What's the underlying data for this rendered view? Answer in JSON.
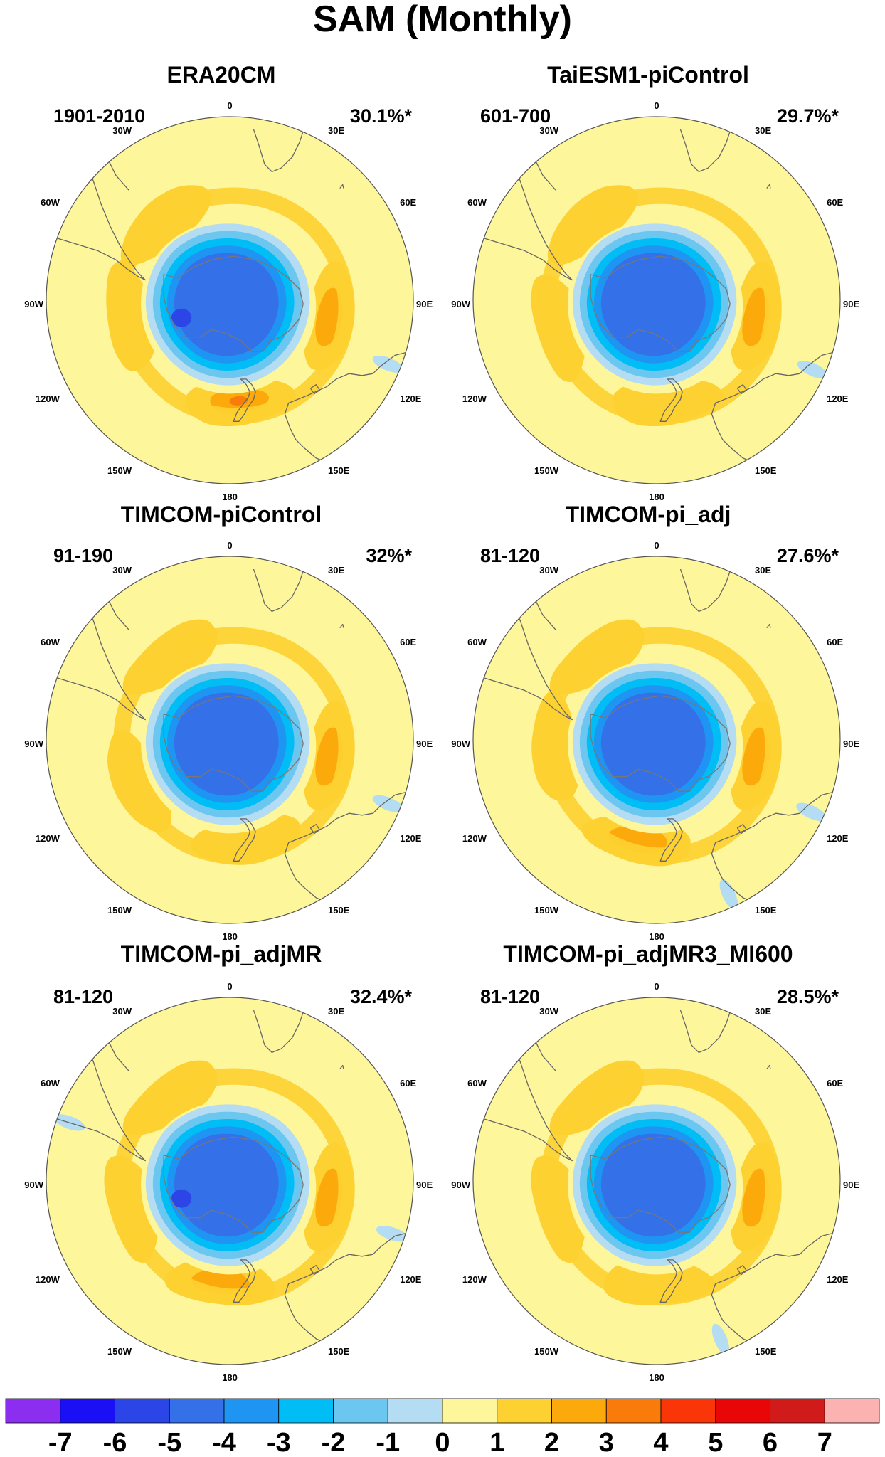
{
  "figure": {
    "title": "SAM (Monthly)"
  },
  "colors": {
    "levels": [
      "#8b2ef0",
      "#1b10f5",
      "#2b45e6",
      "#3470e8",
      "#1e95f3",
      "#00bdf5",
      "#6bc6f0",
      "#b4dcf2",
      "#fdf69b",
      "#fdd131",
      "#fba90b",
      "#f97b0a",
      "#fa3508",
      "#e80606",
      "#d11a1a",
      "#fdb2b2"
    ],
    "coast": "#666666",
    "land_outline": "#777777"
  },
  "chart_data": [
    {
      "type": "heatmap",
      "projection": "south-polar-stereographic",
      "title": "ERA20CM",
      "period": "1901-2010",
      "variance": "30.1%*",
      "lon_labels": [
        "0",
        "30E",
        "60E",
        "90E",
        "120E",
        "150E",
        "180",
        "150W",
        "120W",
        "90W",
        "60W",
        "30W"
      ],
      "features": {
        "ring": [
          -1.2,
          -1.4,
          -1.3,
          -1.1,
          -1.2,
          -1.3,
          -1.2,
          -1.2,
          -1.3,
          -1.2,
          -1.1,
          -1.2
        ],
        "core_min": -5.7,
        "positive_lobes": [
          {
            "lon": 100,
            "value": 2.6
          },
          {
            "lon": 175,
            "value": 3.4
          },
          {
            "lon": 260,
            "value": 1.6
          },
          {
            "lon": 320,
            "value": 1.5
          }
        ],
        "negative_patches": [
          {
            "lon": 112,
            "value": -0.8
          }
        ]
      }
    },
    {
      "type": "heatmap",
      "projection": "south-polar-stereographic",
      "title": "TaiESM1-piControl",
      "period": "601-700",
      "variance": "29.7%*",
      "lon_labels": [
        "0",
        "30E",
        "60E",
        "90E",
        "120E",
        "150E",
        "180",
        "150W",
        "120W",
        "90W",
        "60W",
        "30W"
      ],
      "features": {
        "ring": [
          -1.2,
          -1.3,
          -1.2,
          -1.1,
          -1.2,
          -1.2,
          -1.2,
          -1.2,
          -1.3,
          -1.2,
          -1.1,
          -1.2
        ],
        "core_min": -4.8,
        "positive_lobes": [
          {
            "lon": 100,
            "value": 2.5
          },
          {
            "lon": 175,
            "value": 1.9
          },
          {
            "lon": 255,
            "value": 1.6
          },
          {
            "lon": 320,
            "value": 1.6
          }
        ],
        "negative_patches": [
          {
            "lon": 114,
            "value": -0.9
          }
        ]
      }
    },
    {
      "type": "heatmap",
      "projection": "south-polar-stereographic",
      "title": "TIMCOM-piControl",
      "period": "91-190",
      "variance": "32%*",
      "lon_labels": [
        "0",
        "30E",
        "60E",
        "90E",
        "120E",
        "150E",
        "180",
        "150W",
        "120W",
        "90W",
        "60W",
        "30W"
      ],
      "features": {
        "ring": [
          -1.2,
          -1.3,
          -1.2,
          -1.1,
          -1.2,
          -1.2,
          -1.2,
          -1.2,
          -1.3,
          -1.2,
          -1.1,
          -1.2
        ],
        "core_min": -4.9,
        "positive_lobes": [
          {
            "lon": 100,
            "value": 2.6
          },
          {
            "lon": 170,
            "value": 1.9
          },
          {
            "lon": 245,
            "value": 1.8
          },
          {
            "lon": 325,
            "value": 1.5
          }
        ],
        "negative_patches": [
          {
            "lon": 112,
            "value": -0.6
          }
        ]
      }
    },
    {
      "type": "heatmap",
      "projection": "south-polar-stereographic",
      "title": "TIMCOM-pi_adj",
      "period": "81-120",
      "variance": "27.6%*",
      "lon_labels": [
        "0",
        "30E",
        "60E",
        "90E",
        "120E",
        "150E",
        "180",
        "150W",
        "120W",
        "90W",
        "60W",
        "30W"
      ],
      "features": {
        "ring": [
          -1.2,
          -1.3,
          -1.2,
          -1.1,
          -1.2,
          -1.2,
          -1.2,
          -1.2,
          -1.3,
          -1.2,
          -1.1,
          -1.2
        ],
        "core_min": -4.9,
        "positive_lobes": [
          {
            "lon": 100,
            "value": 2.4
          },
          {
            "lon": 190,
            "value": 2.6
          },
          {
            "lon": 265,
            "value": 1.5
          },
          {
            "lon": 325,
            "value": 1.4
          }
        ],
        "negative_patches": [
          {
            "lon": 115,
            "value": -0.9
          },
          {
            "lon": 155,
            "value": -0.7
          }
        ]
      }
    },
    {
      "type": "heatmap",
      "projection": "south-polar-stereographic",
      "title": "TIMCOM-pi_adjMR",
      "period": "81-120",
      "variance": "32.4%*",
      "lon_labels": [
        "0",
        "30E",
        "60E",
        "90E",
        "120E",
        "150E",
        "180",
        "150W",
        "120W",
        "90W",
        "60W",
        "30W"
      ],
      "features": {
        "ring": [
          -1.2,
          -1.3,
          -1.2,
          -1.1,
          -1.2,
          -1.2,
          -1.2,
          -1.2,
          -1.3,
          -1.2,
          -1.1,
          -1.2
        ],
        "core_min": -5.6,
        "positive_lobes": [
          {
            "lon": 100,
            "value": 2.7
          },
          {
            "lon": 185,
            "value": 2.0
          },
          {
            "lon": 255,
            "value": 1.8
          },
          {
            "lon": 325,
            "value": 1.6
          }
        ],
        "negative_patches": [
          {
            "lon": 108,
            "value": -0.8
          },
          {
            "lon": 290,
            "value": -0.6
          }
        ]
      }
    },
    {
      "type": "heatmap",
      "projection": "south-polar-stereographic",
      "title": "TIMCOM-pi_adjMR3_MI600",
      "period": "81-120",
      "variance": "28.5%*",
      "lon_labels": [
        "0",
        "30E",
        "60E",
        "90E",
        "120E",
        "150E",
        "180",
        "150W",
        "120W",
        "90W",
        "60W",
        "30W"
      ],
      "features": {
        "ring": [
          -1.2,
          -1.3,
          -1.2,
          -1.1,
          -1.2,
          -1.2,
          -1.2,
          -1.2,
          -1.3,
          -1.2,
          -1.1,
          -1.2
        ],
        "core_min": -4.8,
        "positive_lobes": [
          {
            "lon": 100,
            "value": 2.5
          },
          {
            "lon": 180,
            "value": 1.8
          },
          {
            "lon": 255,
            "value": 1.7
          },
          {
            "lon": 325,
            "value": 1.5
          }
        ],
        "negative_patches": [
          {
            "lon": 158,
            "value": -0.7
          }
        ]
      }
    }
  ],
  "colorbar": {
    "labels": [
      "-7",
      "-6",
      "-5",
      "-4",
      "-3",
      "-2",
      "-1",
      "0",
      "1",
      "2",
      "3",
      "4",
      "5",
      "6",
      "7"
    ],
    "n_bins": 16
  }
}
